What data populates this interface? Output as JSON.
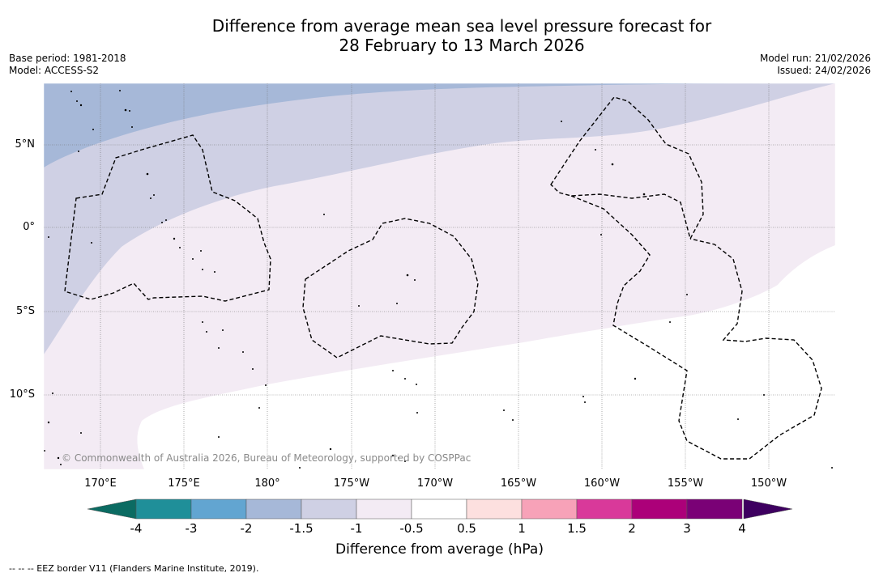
{
  "title_line1": "Difference from average mean sea level pressure forecast for",
  "title_line2": "28 February to 13 March 2026",
  "base_period": "Base period: 1981-2018",
  "model": "Model: ACCESS-S2",
  "model_run": "Model run: 21/02/2026",
  "issued": "Issued: 24/02/2026",
  "lat_labels": [
    "5°N",
    "0°",
    "5°S",
    "10°S"
  ],
  "lon_labels": [
    "170°E",
    "175°E",
    "180°",
    "175°W",
    "170°W",
    "165°W",
    "160°W",
    "155°W",
    "150°W"
  ],
  "copyright": "© Commonwealth of Australia 2026, Bureau of Meteorology, supported by COSPPac",
  "colorbar": {
    "title": "Difference from average (hPa)",
    "tick_labels": [
      "-4",
      "-3",
      "-2",
      "-1.5",
      "-1",
      "-0.5",
      "0.5",
      "1",
      "1.5",
      "2",
      "3",
      "4"
    ],
    "colors": [
      "#1f8f99",
      "#62a5d1",
      "#a6b8d8",
      "#cfd0e4",
      "#f3ebf4",
      "#ffffff",
      "#fde0df",
      "#f7a2b8",
      "#d9399a",
      "#ac0079",
      "#7a0176"
    ],
    "under_color": "#0b6b62",
    "over_color": "#3e0060"
  },
  "footnote": "--  --  -- EEZ border V11 (Flanders Marine Institute, 2019)."
}
